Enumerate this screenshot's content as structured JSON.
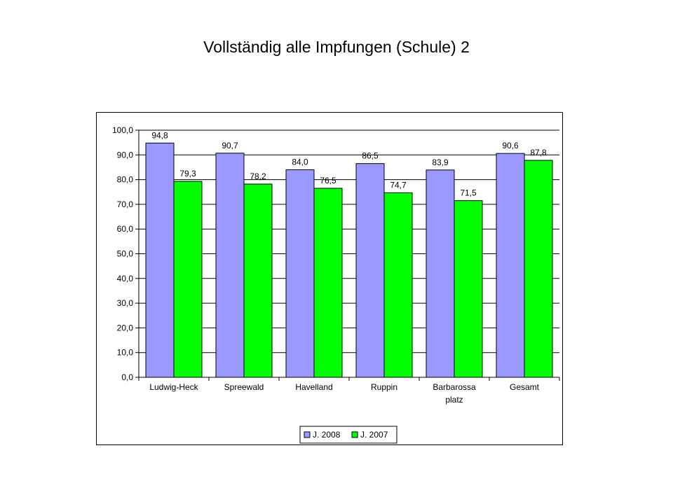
{
  "title": "Vollständig alle Impfungen (Schule) 2",
  "colors": {
    "series_2008": "#9999ff",
    "series_2007": "#00ff00",
    "grid": "#000000",
    "background": "#ffffff"
  },
  "chart_data": {
    "type": "bar",
    "title": "Vollständig alle Impfungen (Schule) 2",
    "categories": [
      [
        "Ludwig-Heck"
      ],
      [
        "Spreewald"
      ],
      [
        "Havelland"
      ],
      [
        "Ruppin"
      ],
      [
        "Barbarossa",
        "platz"
      ],
      [
        "Gesamt"
      ]
    ],
    "series": [
      {
        "name": "J. 2008",
        "values": [
          94.8,
          90.7,
          84.0,
          86.5,
          83.9,
          90.6
        ],
        "labels": [
          "94,8",
          "90,7",
          "84,0",
          "86,5",
          "83,9",
          "90,6"
        ]
      },
      {
        "name": "J. 2007",
        "values": [
          79.3,
          78.2,
          76.5,
          74.7,
          71.5,
          87.8
        ],
        "labels": [
          "79,3",
          "78,2",
          "76,5",
          "74,7",
          "71,5",
          "87,8"
        ]
      }
    ],
    "y_ticks": [
      0,
      10,
      20,
      30,
      40,
      50,
      60,
      70,
      80,
      90,
      100
    ],
    "y_tick_labels": [
      "0,0",
      "10,0",
      "20,0",
      "30,0",
      "40,0",
      "50,0",
      "60,0",
      "70,0",
      "80,0",
      "90,0",
      "100,0"
    ],
    "ylim": [
      0,
      100
    ],
    "xlabel": "",
    "ylabel": "",
    "grid": true,
    "legend_position": "bottom-center"
  }
}
